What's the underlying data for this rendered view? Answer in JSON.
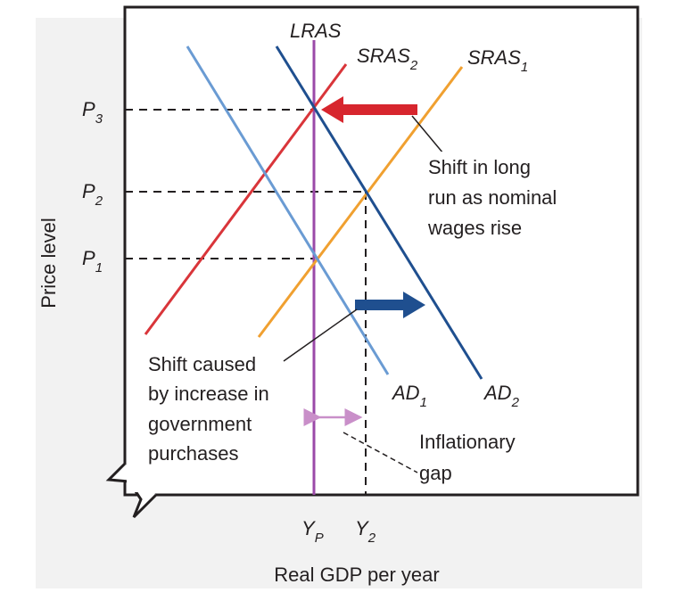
{
  "axes": {
    "y_label": "Price level",
    "x_label": "Real GDP per year"
  },
  "curves": {
    "lras": "LRAS",
    "sras2": {
      "main": "SRAS",
      "sub": "2"
    },
    "sras1": {
      "main": "SRAS",
      "sub": "1"
    },
    "ad1": {
      "main": "AD",
      "sub": "1"
    },
    "ad2": {
      "main": "AD",
      "sub": "2"
    }
  },
  "price_levels": [
    {
      "main": "P",
      "sub": "3"
    },
    {
      "main": "P",
      "sub": "2"
    },
    {
      "main": "P",
      "sub": "1"
    }
  ],
  "outputs": [
    {
      "main": "Y",
      "sub": "P"
    },
    {
      "main": "Y",
      "sub": "2"
    }
  ],
  "annotations": {
    "long_run_shift": [
      "Shift in long",
      "run as nominal",
      "wages rise"
    ],
    "demand_shift": [
      "Shift caused",
      "by increase in",
      "government",
      "purchases"
    ],
    "gap": [
      "Inflationary",
      "gap"
    ]
  }
}
